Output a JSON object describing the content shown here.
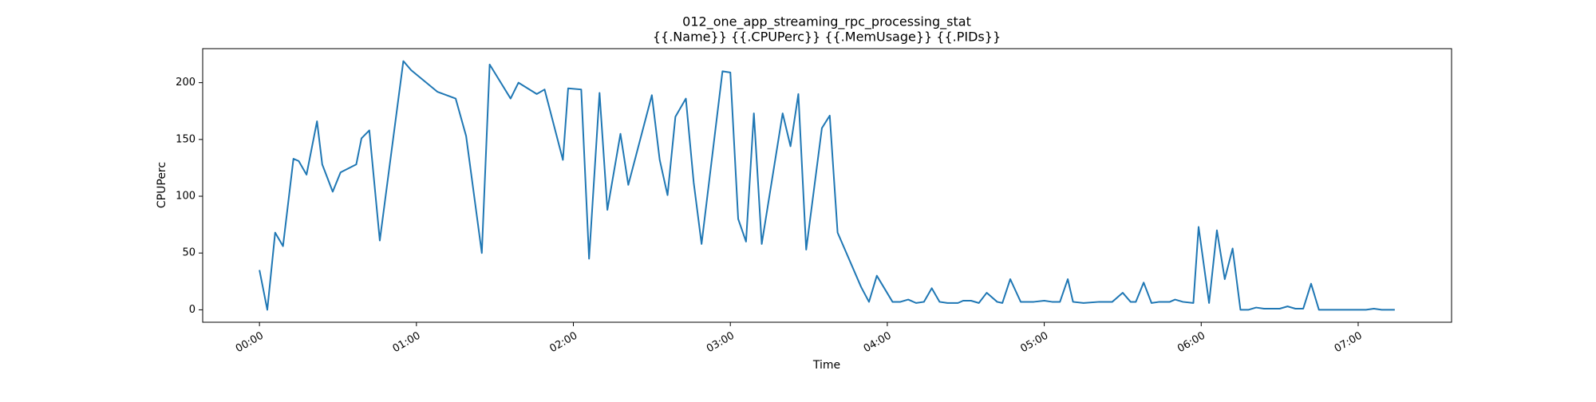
{
  "chart_data": {
    "type": "line",
    "title": "012_one_app_streaming_rpc_processing_stat",
    "subtitle": "{{.Name}} {{.CPUPerc}} {{.MemUsage}}  {{.PIDs}}",
    "x_label": "Time",
    "y_label": "CPUPerc",
    "xlim": [
      -21.7,
      455.7
    ],
    "ylim": [
      -10.95,
      229.95
    ],
    "xticks": [
      {
        "value": 0,
        "label": "00:00"
      },
      {
        "value": 60,
        "label": "01:00"
      },
      {
        "value": 120,
        "label": "02:00"
      },
      {
        "value": 180,
        "label": "03:00"
      },
      {
        "value": 240,
        "label": "04:00"
      },
      {
        "value": 300,
        "label": "05:00"
      },
      {
        "value": 360,
        "label": "06:00"
      },
      {
        "value": 420,
        "label": "07:00"
      }
    ],
    "yticks": [
      0,
      50,
      100,
      150,
      200
    ],
    "grid": false,
    "x": [
      0,
      3,
      6,
      9,
      13,
      15,
      18,
      22,
      24,
      28,
      31,
      37,
      39,
      42,
      46,
      55,
      58,
      68,
      75,
      79,
      85,
      88,
      96,
      99,
      106,
      109,
      116,
      118,
      123,
      126,
      130,
      133,
      138,
      141,
      150,
      153,
      156,
      159,
      163,
      166,
      169,
      177,
      180,
      183,
      186,
      189,
      192,
      200,
      203,
      206,
      209,
      215,
      218,
      221,
      230,
      233,
      236,
      242,
      245,
      248,
      251,
      254,
      257,
      260,
      263,
      267,
      269,
      272,
      275,
      278,
      282,
      284,
      287,
      291,
      294,
      296,
      300,
      303,
      306,
      309,
      311,
      315,
      321,
      326,
      330,
      333,
      335,
      338,
      341,
      344,
      348,
      350,
      353,
      357,
      359,
      363,
      366,
      369,
      372,
      375,
      378,
      381,
      384,
      387,
      390,
      393,
      396,
      399,
      402,
      405,
      411,
      417,
      423,
      426,
      429,
      434
    ],
    "series": [
      {
        "name": "CPUPerc",
        "color": "#1f77b4",
        "values": [
          35,
          0,
          68,
          56,
          133,
          131,
          119,
          166,
          128,
          104,
          121,
          128,
          151,
          158,
          61,
          219,
          211,
          192,
          186,
          153,
          50,
          216,
          186,
          200,
          190,
          194,
          132,
          195,
          194,
          45,
          191,
          88,
          155,
          110,
          189,
          132,
          101,
          170,
          186,
          112,
          58,
          210,
          209,
          80,
          60,
          173,
          58,
          173,
          144,
          190,
          53,
          160,
          171,
          68,
          20,
          7,
          30,
          7,
          7,
          9,
          6,
          7,
          19,
          7,
          6,
          6,
          8,
          8,
          6,
          15,
          7,
          6,
          27,
          7,
          7,
          7,
          8,
          7,
          7,
          27,
          7,
          6,
          7,
          7,
          15,
          7,
          7,
          24,
          6,
          7,
          7,
          9,
          7,
          6,
          73,
          6,
          70,
          27,
          54,
          0,
          0,
          2,
          1,
          1,
          1,
          3,
          1,
          1,
          23,
          0,
          0,
          0,
          0,
          1,
          0,
          0
        ]
      }
    ]
  }
}
